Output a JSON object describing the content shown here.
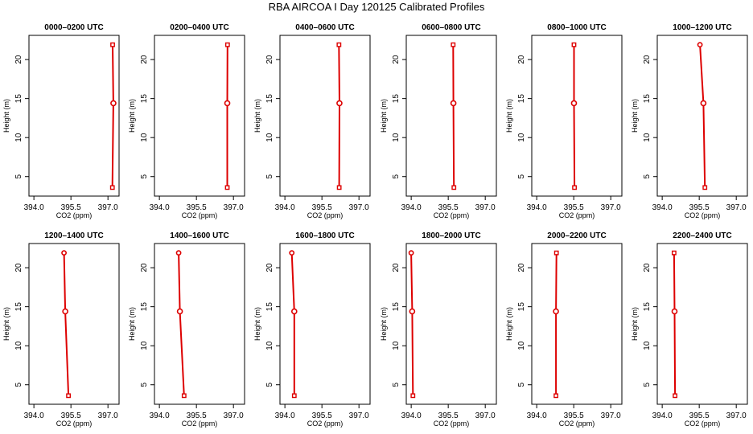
{
  "title": "RBA AIRCOA I  Day 120125  Calibrated Profiles",
  "colors": {
    "series": "#dd0000",
    "axis": "#000000",
    "background": "#ffffff"
  },
  "chart_data": [
    {
      "type": "line",
      "title": "0000–0200 UTC",
      "xlabel": "CO2 (ppm)",
      "ylabel": "Height (m)",
      "xlim": [
        393.8,
        397.45
      ],
      "ylim": [
        2.5,
        23.1
      ],
      "xticks": [
        {
          "v": 394.0,
          "label": "394.0"
        },
        {
          "v": 395.5,
          "label": "395.5"
        },
        {
          "v": 397.0,
          "label": "397.0"
        }
      ],
      "yticks": [
        {
          "v": 5,
          "label": "5"
        },
        {
          "v": 10,
          "label": "10"
        },
        {
          "v": 15,
          "label": "15"
        },
        {
          "v": 20,
          "label": "20"
        }
      ],
      "x": [
        397.18,
        397.22,
        397.19
      ],
      "y": [
        3.6,
        14.4,
        21.9
      ]
    },
    {
      "type": "line",
      "title": "0200–0400 UTC",
      "xlabel": "CO2 (ppm)",
      "ylabel": "Height (m)",
      "xlim": [
        393.8,
        397.45
      ],
      "ylim": [
        2.5,
        23.1
      ],
      "xticks": [
        {
          "v": 394.0,
          "label": "394.0"
        },
        {
          "v": 395.5,
          "label": "395.5"
        },
        {
          "v": 397.0,
          "label": "397.0"
        }
      ],
      "yticks": [
        {
          "v": 5,
          "label": "5"
        },
        {
          "v": 10,
          "label": "10"
        },
        {
          "v": 15,
          "label": "15"
        },
        {
          "v": 20,
          "label": "20"
        }
      ],
      "x": [
        396.75,
        396.75,
        396.76
      ],
      "y": [
        3.6,
        14.4,
        21.9
      ]
    },
    {
      "type": "line",
      "title": "0400–0600 UTC",
      "xlabel": "CO2 (ppm)",
      "ylabel": "Height (m)",
      "xlim": [
        393.8,
        397.45
      ],
      "ylim": [
        2.5,
        23.1
      ],
      "xticks": [
        {
          "v": 394.0,
          "label": "394.0"
        },
        {
          "v": 395.5,
          "label": "395.5"
        },
        {
          "v": 397.0,
          "label": "397.0"
        }
      ],
      "yticks": [
        {
          "v": 5,
          "label": "5"
        },
        {
          "v": 10,
          "label": "10"
        },
        {
          "v": 15,
          "label": "15"
        },
        {
          "v": 20,
          "label": "20"
        }
      ],
      "x": [
        396.2,
        396.21,
        396.19
      ],
      "y": [
        3.6,
        14.4,
        21.9
      ]
    },
    {
      "type": "line",
      "title": "0600–0800 UTC",
      "xlabel": "CO2 (ppm)",
      "ylabel": "Height (m)",
      "xlim": [
        393.8,
        397.45
      ],
      "ylim": [
        2.5,
        23.1
      ],
      "xticks": [
        {
          "v": 394.0,
          "label": "394.0"
        },
        {
          "v": 395.5,
          "label": "395.5"
        },
        {
          "v": 397.0,
          "label": "397.0"
        }
      ],
      "yticks": [
        {
          "v": 5,
          "label": "5"
        },
        {
          "v": 10,
          "label": "10"
        },
        {
          "v": 15,
          "label": "15"
        },
        {
          "v": 20,
          "label": "20"
        }
      ],
      "x": [
        395.73,
        395.71,
        395.7
      ],
      "y": [
        3.6,
        14.4,
        21.9
      ]
    },
    {
      "type": "line",
      "title": "0800–1000 UTC",
      "xlabel": "CO2 (ppm)",
      "ylabel": "Height (m)",
      "xlim": [
        393.8,
        397.45
      ],
      "ylim": [
        2.5,
        23.1
      ],
      "xticks": [
        {
          "v": 394.0,
          "label": "394.0"
        },
        {
          "v": 395.5,
          "label": "395.5"
        },
        {
          "v": 397.0,
          "label": "397.0"
        }
      ],
      "yticks": [
        {
          "v": 5,
          "label": "5"
        },
        {
          "v": 10,
          "label": "10"
        },
        {
          "v": 15,
          "label": "15"
        },
        {
          "v": 20,
          "label": "20"
        }
      ],
      "x": [
        395.53,
        395.51,
        395.51
      ],
      "y": [
        3.6,
        14.4,
        21.9
      ]
    },
    {
      "type": "line",
      "title": "1000–1200 UTC",
      "xlabel": "CO2 (ppm)",
      "ylabel": "Height (m)",
      "xlim": [
        393.8,
        397.45
      ],
      "ylim": [
        2.5,
        23.1
      ],
      "xticks": [
        {
          "v": 394.0,
          "label": "394.0"
        },
        {
          "v": 395.5,
          "label": "395.5"
        },
        {
          "v": 397.0,
          "label": "397.0"
        }
      ],
      "yticks": [
        {
          "v": 5,
          "label": "5"
        },
        {
          "v": 10,
          "label": "10"
        },
        {
          "v": 15,
          "label": "15"
        },
        {
          "v": 20,
          "label": "20"
        }
      ],
      "x": [
        395.73,
        395.67,
        395.53
      ],
      "y": [
        3.6,
        14.4,
        21.9
      ]
    },
    {
      "type": "line",
      "title": "1200–1400 UTC",
      "xlabel": "CO2 (ppm)",
      "ylabel": "Height (m)",
      "xlim": [
        393.8,
        397.45
      ],
      "ylim": [
        2.5,
        23.1
      ],
      "xticks": [
        {
          "v": 394.0,
          "label": "394.0"
        },
        {
          "v": 395.5,
          "label": "395.5"
        },
        {
          "v": 397.0,
          "label": "397.0"
        }
      ],
      "yticks": [
        {
          "v": 5,
          "label": "5"
        },
        {
          "v": 10,
          "label": "10"
        },
        {
          "v": 15,
          "label": "15"
        },
        {
          "v": 20,
          "label": "20"
        }
      ],
      "x": [
        395.4,
        395.27,
        395.22
      ],
      "y": [
        3.6,
        14.4,
        21.9
      ]
    },
    {
      "type": "line",
      "title": "1400–1600 UTC",
      "xlabel": "CO2 (ppm)",
      "ylabel": "Height (m)",
      "xlim": [
        393.8,
        397.45
      ],
      "ylim": [
        2.5,
        23.1
      ],
      "xticks": [
        {
          "v": 394.0,
          "label": "394.0"
        },
        {
          "v": 395.5,
          "label": "395.5"
        },
        {
          "v": 397.0,
          "label": "397.0"
        }
      ],
      "yticks": [
        {
          "v": 5,
          "label": "5"
        },
        {
          "v": 10,
          "label": "10"
        },
        {
          "v": 15,
          "label": "15"
        },
        {
          "v": 20,
          "label": "20"
        }
      ],
      "x": [
        395.0,
        394.83,
        394.78
      ],
      "y": [
        3.6,
        14.4,
        21.9
      ]
    },
    {
      "type": "line",
      "title": "1600–1800 UTC",
      "xlabel": "CO2 (ppm)",
      "ylabel": "Height (m)",
      "xlim": [
        393.8,
        397.45
      ],
      "ylim": [
        2.5,
        23.1
      ],
      "xticks": [
        {
          "v": 394.0,
          "label": "394.0"
        },
        {
          "v": 395.5,
          "label": "395.5"
        },
        {
          "v": 397.0,
          "label": "397.0"
        }
      ],
      "yticks": [
        {
          "v": 5,
          "label": "5"
        },
        {
          "v": 10,
          "label": "10"
        },
        {
          "v": 15,
          "label": "15"
        },
        {
          "v": 20,
          "label": "20"
        }
      ],
      "x": [
        394.38,
        394.38,
        394.28
      ],
      "y": [
        3.6,
        14.4,
        21.9
      ]
    },
    {
      "type": "line",
      "title": "1800–2000 UTC",
      "xlabel": "CO2 (ppm)",
      "ylabel": "Height (m)",
      "xlim": [
        393.8,
        397.45
      ],
      "ylim": [
        2.5,
        23.1
      ],
      "xticks": [
        {
          "v": 394.0,
          "label": "394.0"
        },
        {
          "v": 395.5,
          "label": "395.5"
        },
        {
          "v": 397.0,
          "label": "397.0"
        }
      ],
      "yticks": [
        {
          "v": 5,
          "label": "5"
        },
        {
          "v": 10,
          "label": "10"
        },
        {
          "v": 15,
          "label": "15"
        },
        {
          "v": 20,
          "label": "20"
        }
      ],
      "x": [
        394.07,
        394.04,
        394.0
      ],
      "y": [
        3.6,
        14.4,
        21.9
      ]
    },
    {
      "type": "line",
      "title": "2000–2200 UTC",
      "xlabel": "CO2 (ppm)",
      "ylabel": "Height (m)",
      "xlim": [
        393.8,
        397.45
      ],
      "ylim": [
        2.5,
        23.1
      ],
      "xticks": [
        {
          "v": 394.0,
          "label": "394.0"
        },
        {
          "v": 395.5,
          "label": "395.5"
        },
        {
          "v": 397.0,
          "label": "397.0"
        }
      ],
      "yticks": [
        {
          "v": 5,
          "label": "5"
        },
        {
          "v": 10,
          "label": "10"
        },
        {
          "v": 15,
          "label": "15"
        },
        {
          "v": 20,
          "label": "20"
        }
      ],
      "x": [
        394.78,
        394.78,
        394.8
      ],
      "y": [
        3.6,
        14.4,
        21.9
      ]
    },
    {
      "type": "line",
      "title": "2200–2400 UTC",
      "xlabel": "CO2 (ppm)",
      "ylabel": "Height (m)",
      "xlim": [
        393.8,
        397.45
      ],
      "ylim": [
        2.5,
        23.1
      ],
      "xticks": [
        {
          "v": 394.0,
          "label": "394.0"
        },
        {
          "v": 395.5,
          "label": "395.5"
        },
        {
          "v": 397.0,
          "label": "397.0"
        }
      ],
      "yticks": [
        {
          "v": 5,
          "label": "5"
        },
        {
          "v": 10,
          "label": "10"
        },
        {
          "v": 15,
          "label": "15"
        },
        {
          "v": 20,
          "label": "20"
        }
      ],
      "x": [
        394.52,
        394.5,
        394.48
      ],
      "y": [
        3.6,
        14.4,
        21.9
      ]
    }
  ]
}
